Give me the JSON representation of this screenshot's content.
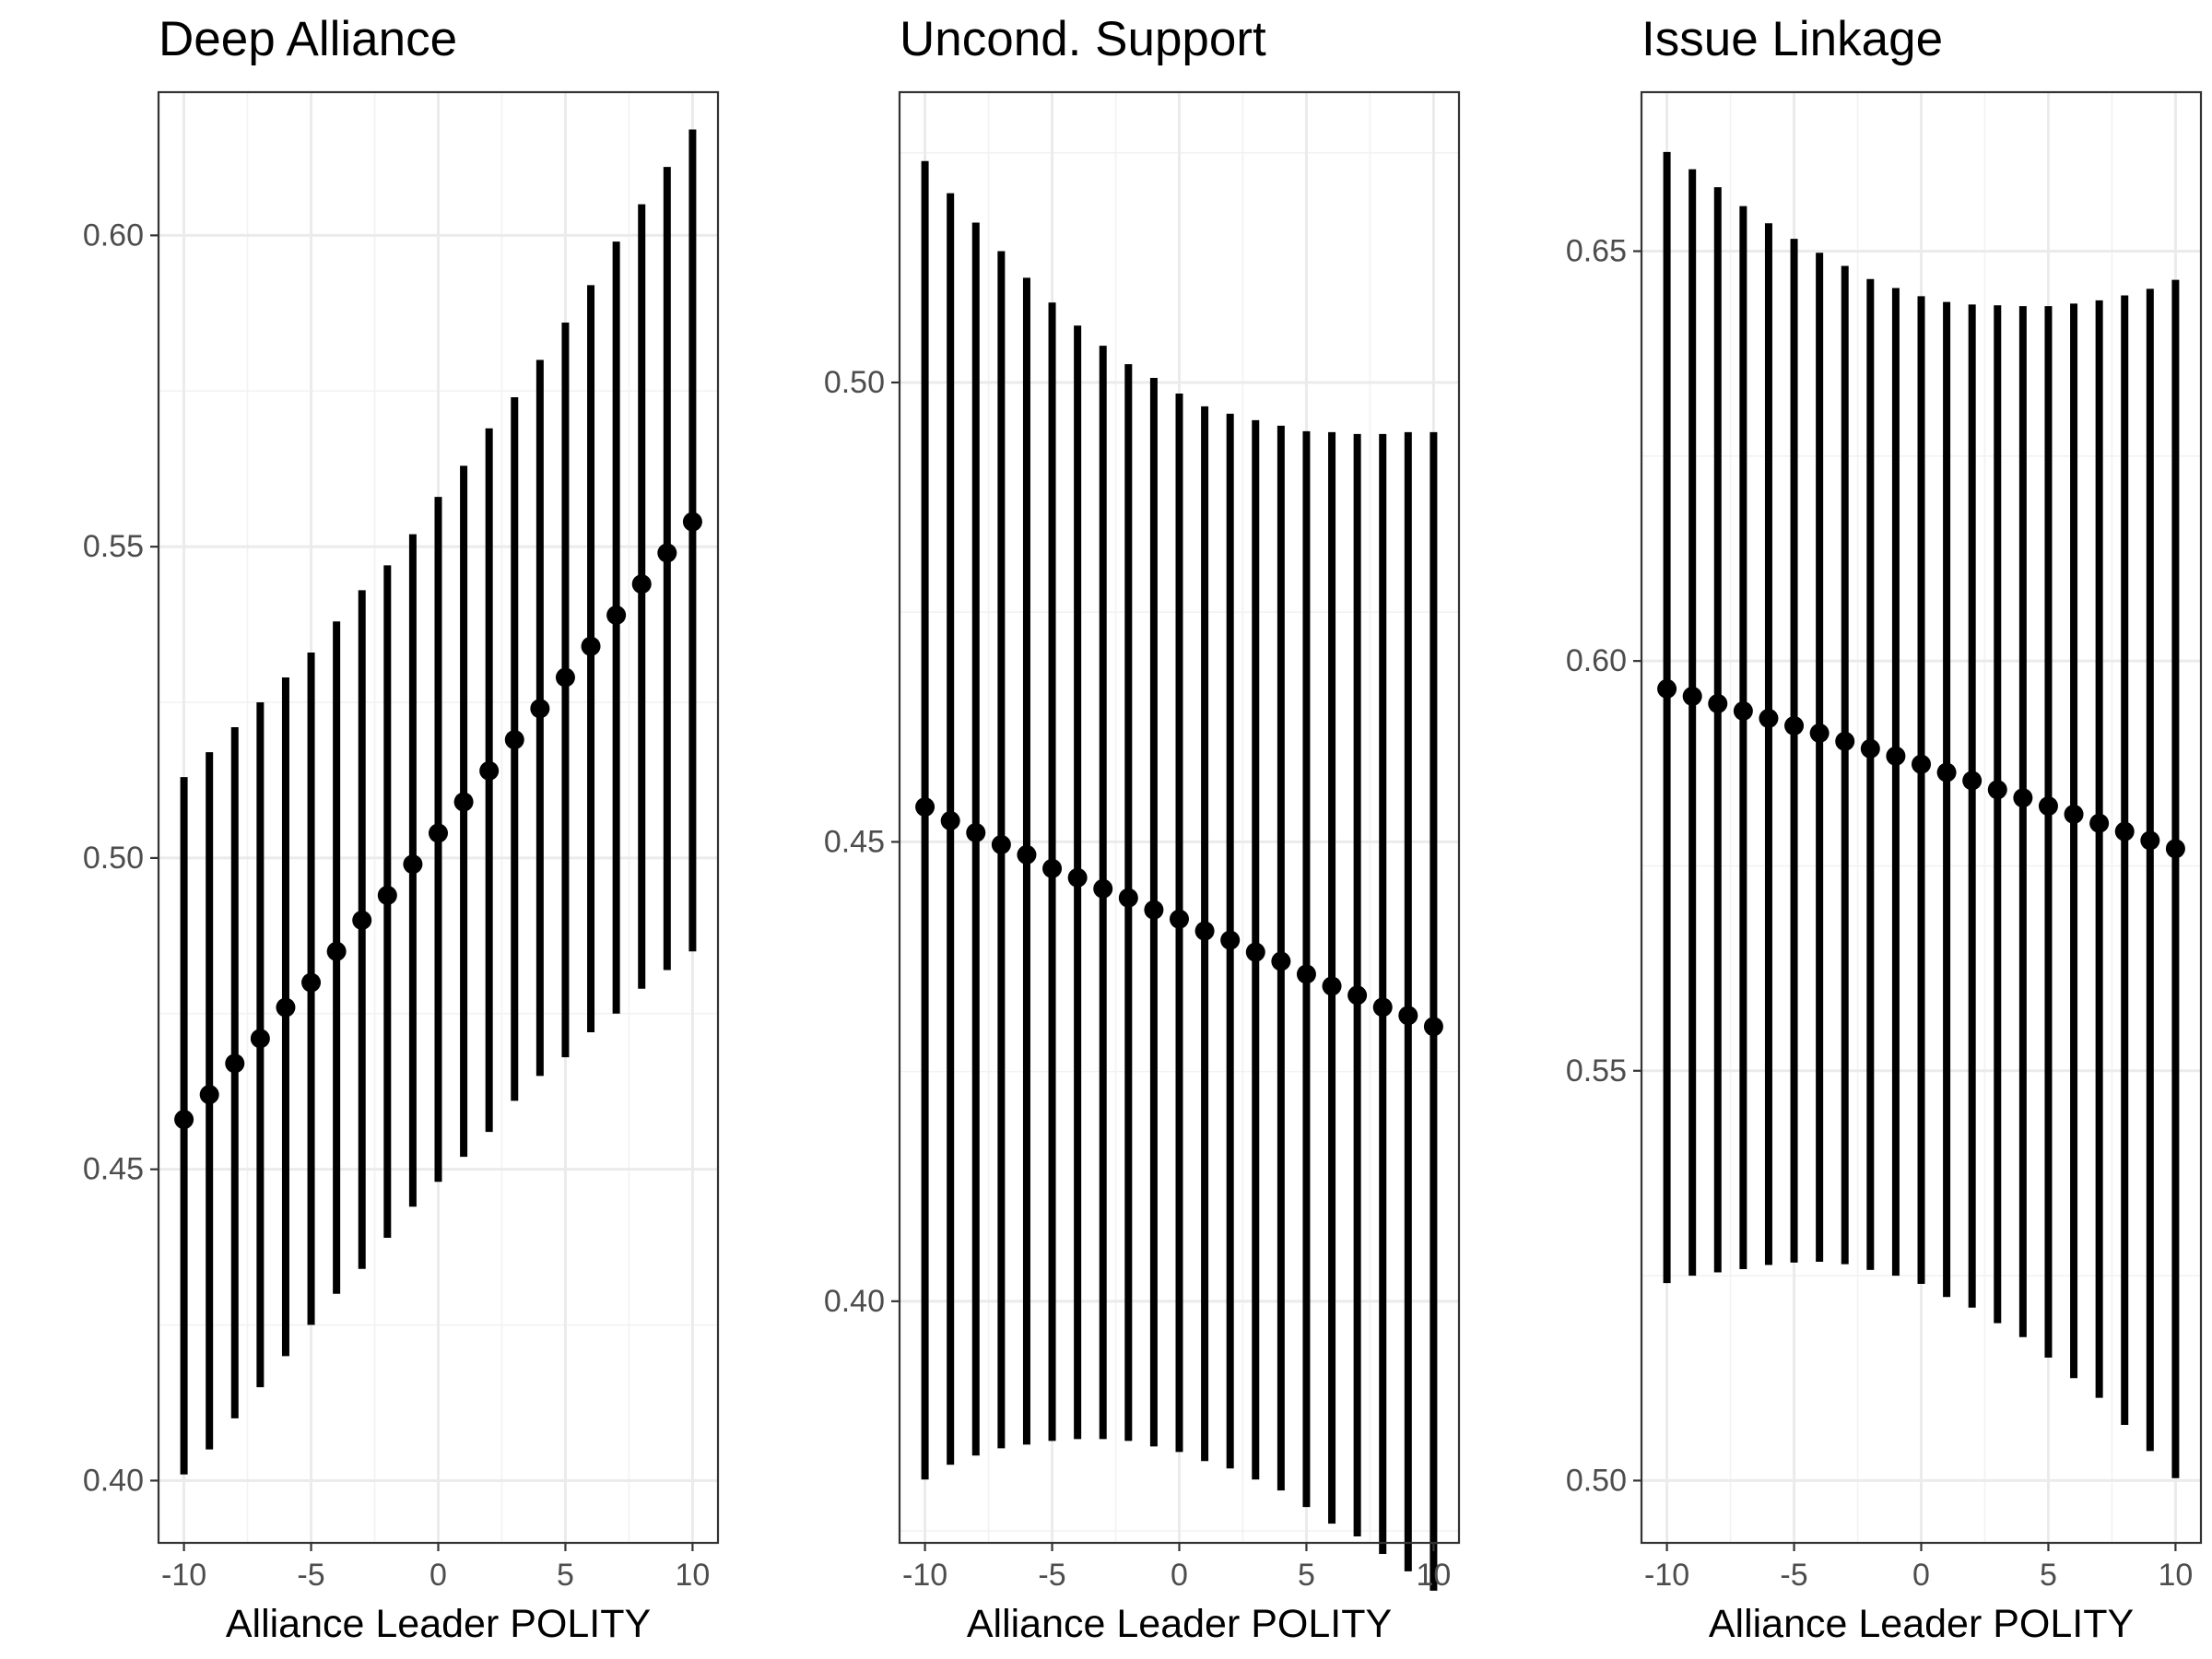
{
  "chart_data": [
    {
      "type": "errorbar",
      "title": "Deep Alliance",
      "xlabel": "Alliance Leader POLITY",
      "ylabel": "",
      "xlim": [
        -11,
        11
      ],
      "ylim": [
        0.39,
        0.623
      ],
      "xticks": [
        -10,
        -5,
        0,
        5,
        10
      ],
      "xtick_labels": [
        "-10",
        "-5",
        "0",
        "5",
        "10"
      ],
      "yticks": [
        0.4,
        0.45,
        0.5,
        0.55,
        0.6
      ],
      "ytick_labels": [
        "0.40",
        "0.45",
        "0.50",
        "0.55",
        "0.60"
      ],
      "grid": true,
      "x": [
        -10,
        -9,
        -8,
        -7,
        -6,
        -5,
        -4,
        -3,
        -2,
        -1,
        0,
        1,
        2,
        3,
        4,
        5,
        6,
        7,
        8,
        9,
        10
      ],
      "estimate": [
        0.458,
        0.462,
        0.467,
        0.471,
        0.476,
        0.48,
        0.485,
        0.49,
        0.494,
        0.499,
        0.504,
        0.509,
        0.514,
        0.519,
        0.524,
        0.529,
        0.534,
        0.539,
        0.544,
        0.549,
        0.554
      ],
      "lower": [
        0.401,
        0.405,
        0.41,
        0.415,
        0.42,
        0.425,
        0.43,
        0.434,
        0.439,
        0.444,
        0.448,
        0.452,
        0.456,
        0.461,
        0.465,
        0.468,
        0.472,
        0.475,
        0.479,
        0.482,
        0.485
      ],
      "upper": [
        0.513,
        0.517,
        0.521,
        0.525,
        0.529,
        0.533,
        0.538,
        0.543,
        0.547,
        0.552,
        0.558,
        0.563,
        0.569,
        0.574,
        0.58,
        0.586,
        0.592,
        0.599,
        0.605,
        0.611,
        0.617
      ]
    },
    {
      "type": "errorbar",
      "title": "Uncond. Support",
      "xlabel": "Alliance Leader POLITY",
      "ylabel": "",
      "xlim": [
        -11,
        11
      ],
      "ylim": [
        0.3737,
        0.5316
      ],
      "xticks": [
        -10,
        -5,
        0,
        5,
        10
      ],
      "xtick_labels": [
        "-10",
        "-5",
        "0",
        "5",
        "10"
      ],
      "yticks": [
        0.4,
        0.45,
        0.5
      ],
      "ytick_labels": [
        "0.40",
        "0.45",
        "0.50"
      ],
      "grid": true,
      "x": [
        -10,
        -9,
        -8,
        -7,
        -6,
        -5,
        -4,
        -3,
        -2,
        -1,
        0,
        1,
        2,
        3,
        4,
        5,
        6,
        7,
        8,
        9,
        10
      ],
      "estimate": [
        0.4538,
        0.4523,
        0.451,
        0.4497,
        0.4486,
        0.4471,
        0.4461,
        0.4449,
        0.4439,
        0.4426,
        0.4416,
        0.4403,
        0.4393,
        0.438,
        0.437,
        0.4356,
        0.4343,
        0.4333,
        0.432,
        0.4311,
        0.4299
      ],
      "lower": [
        0.3806,
        0.3822,
        0.3832,
        0.384,
        0.3844,
        0.3848,
        0.385,
        0.385,
        0.3848,
        0.3842,
        0.3836,
        0.3826,
        0.3818,
        0.3806,
        0.3794,
        0.3776,
        0.3758,
        0.3744,
        0.3725,
        0.3706,
        0.3685
      ],
      "upper": [
        0.5241,
        0.5206,
        0.5174,
        0.5143,
        0.5114,
        0.5087,
        0.5062,
        0.504,
        0.502,
        0.5005,
        0.4988,
        0.4974,
        0.4966,
        0.4959,
        0.4953,
        0.4947,
        0.4946,
        0.4944,
        0.4944,
        0.4946,
        0.4946
      ]
    },
    {
      "type": "errorbar",
      "title": "Issue Linkage",
      "xlabel": "Alliance Leader POLITY",
      "ylabel": "",
      "xlim": [
        -11,
        11
      ],
      "ylim": [
        0.4924,
        0.6694
      ],
      "xticks": [
        -10,
        -5,
        0,
        5,
        10
      ],
      "xtick_labels": [
        "-10",
        "-5",
        "0",
        "5",
        "10"
      ],
      "yticks": [
        0.5,
        0.55,
        0.6,
        0.65
      ],
      "ytick_labels": [
        "0.50",
        "0.55",
        "0.60",
        "0.65"
      ],
      "grid": true,
      "x": [
        -10,
        -9,
        -8,
        -7,
        -6,
        -5,
        -4,
        -3,
        -2,
        -1,
        0,
        1,
        2,
        3,
        4,
        5,
        6,
        7,
        8,
        9,
        10
      ],
      "estimate": [
        0.5966,
        0.5957,
        0.5948,
        0.5939,
        0.593,
        0.5921,
        0.5912,
        0.5902,
        0.5893,
        0.5884,
        0.5874,
        0.5864,
        0.5854,
        0.5843,
        0.5833,
        0.5823,
        0.5813,
        0.5802,
        0.5792,
        0.5781,
        0.5771
      ],
      "lower": [
        0.5241,
        0.525,
        0.5254,
        0.5258,
        0.5263,
        0.5266,
        0.5267,
        0.5264,
        0.5257,
        0.525,
        0.524,
        0.5224,
        0.5211,
        0.5192,
        0.5175,
        0.515,
        0.5125,
        0.5101,
        0.5068,
        0.5036,
        0.5003
      ],
      "upper": [
        0.6621,
        0.66,
        0.6578,
        0.6555,
        0.6534,
        0.6515,
        0.6498,
        0.6482,
        0.6466,
        0.6455,
        0.6445,
        0.6438,
        0.6435,
        0.6434,
        0.6433,
        0.6433,
        0.6436,
        0.644,
        0.6446,
        0.6454,
        0.6465
      ]
    }
  ]
}
